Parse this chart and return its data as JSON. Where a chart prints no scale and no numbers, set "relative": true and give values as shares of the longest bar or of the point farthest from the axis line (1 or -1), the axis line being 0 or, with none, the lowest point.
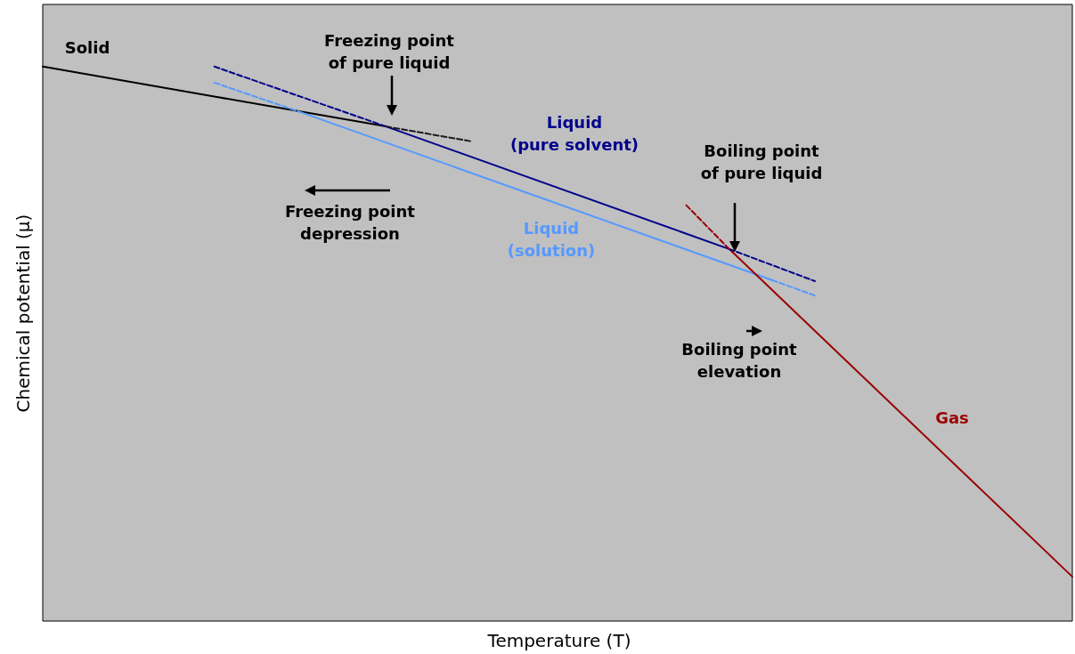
{
  "chart_data": {
    "type": "line",
    "relative": true,
    "xlabel": "Temperature (T)",
    "ylabel": "Chemical potential (μ)",
    "categories": [
      null,
      null,
      null,
      null,
      null,
      null,
      null,
      null,
      null,
      null,
      null,
      null,
      null,
      null,
      null,
      null,
      null,
      null,
      null,
      null,
      null,
      null,
      null,
      null,
      null
    ],
    "marker": "none",
    "grid": false,
    "series": [
      {
        "name": "Solid",
        "color": "#000000",
        "line_style": "solid",
        "values": [
          1.0,
          null,
          null,
          null,
          0.946,
          null,
          null,
          null,
          0.892,
          null,
          null,
          null,
          null,
          null,
          null,
          null,
          null,
          null,
          null,
          null,
          null,
          null,
          null,
          null,
          null
        ]
      },
      {
        "color": "#1a1a1a",
        "line_style": "dashed",
        "values": [
          null,
          null,
          null,
          null,
          null,
          null,
          null,
          null,
          0.892,
          null,
          0.865,
          null,
          null,
          null,
          null,
          null,
          null,
          null,
          null,
          null,
          null,
          null,
          null,
          null,
          null
        ]
      },
      {
        "color": "#00008b",
        "line_style": "dashed",
        "values": [
          null,
          null,
          null,
          null,
          1.0,
          null,
          null,
          null,
          0.892,
          null,
          null,
          null,
          null,
          null,
          null,
          null,
          null,
          null,
          null,
          null,
          null,
          null,
          null,
          null,
          null
        ]
      },
      {
        "name": "Liquid\n(pure solvent)",
        "color": "#00008b",
        "line_style": "solid",
        "values": [
          null,
          null,
          null,
          null,
          null,
          null,
          null,
          null,
          0.892,
          null,
          null,
          null,
          null,
          null,
          null,
          null,
          0.671,
          null,
          null,
          null,
          null,
          null,
          null,
          null,
          null
        ]
      },
      {
        "color": "#00008b",
        "line_style": "dashed",
        "values": [
          null,
          null,
          null,
          null,
          null,
          null,
          null,
          null,
          null,
          null,
          null,
          null,
          null,
          null,
          null,
          null,
          0.671,
          null,
          0.613,
          null,
          null,
          null,
          null,
          null,
          null
        ]
      },
      {
        "color": "#5599ff",
        "line_style": "dashed",
        "values": [
          null,
          null,
          null,
          null,
          0.971,
          null,
          0.918,
          null,
          null,
          null,
          null,
          null,
          null,
          null,
          null,
          null,
          null,
          null,
          null,
          null,
          null,
          null,
          null,
          null,
          null
        ]
      },
      {
        "name": "Liquid\n(solution)",
        "color": "#5599ff",
        "line_style": "solid",
        "values": [
          null,
          null,
          null,
          null,
          null,
          null,
          0.918,
          null,
          null,
          null,
          null,
          null,
          null,
          null,
          null,
          null,
          null,
          0.615,
          null,
          null,
          null,
          null,
          null,
          null,
          null
        ]
      },
      {
        "color": "#5599ff",
        "line_style": "dashed",
        "values": [
          null,
          null,
          null,
          null,
          null,
          null,
          null,
          null,
          null,
          null,
          null,
          null,
          null,
          null,
          null,
          null,
          null,
          0.615,
          0.587,
          null,
          null,
          null,
          null,
          null,
          null
        ]
      },
      {
        "color": "#990000",
        "line_style": "dashed",
        "values": [
          null,
          null,
          null,
          null,
          null,
          null,
          null,
          null,
          null,
          null,
          null,
          null,
          null,
          null,
          null,
          0.75,
          0.671,
          null,
          null,
          null,
          null,
          null,
          null,
          null,
          null
        ]
      },
      {
        "name": "Gas",
        "color": "#990000",
        "line_style": "solid",
        "values": [
          null,
          null,
          null,
          null,
          null,
          null,
          null,
          null,
          null,
          null,
          null,
          null,
          null,
          null,
          null,
          null,
          0.671,
          null,
          null,
          null,
          null,
          null,
          null,
          null,
          0.08
        ]
      }
    ],
    "annotations": [
      "Freezing point\nof pure liquid",
      "Freezing point\ndepression",
      "Boiling point\nof pure liquid",
      "Boiling point\nelevation"
    ]
  }
}
